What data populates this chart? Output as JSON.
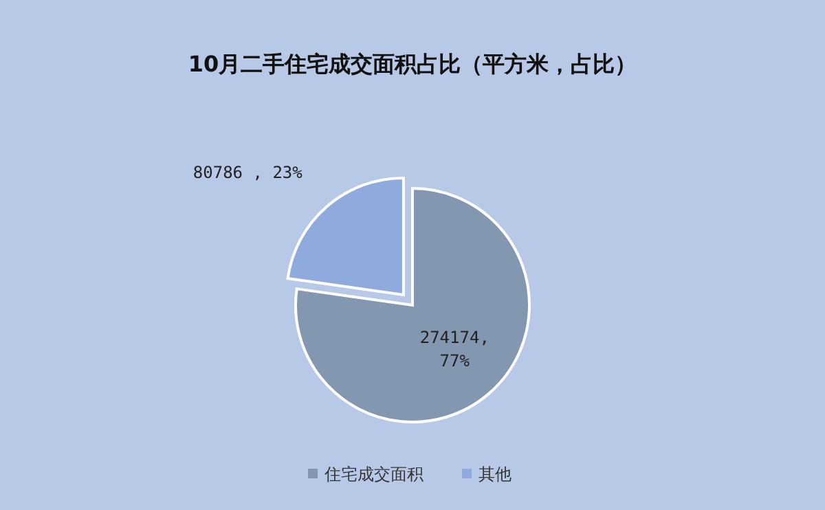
{
  "chart_data": {
    "type": "pie",
    "title": "10月二手住宅成交面积占比（平方米，占比）",
    "categories": [
      "住宅成交面积",
      "其他"
    ],
    "values": [
      274174,
      80786
    ],
    "colors": [
      "#8497b0",
      "#8faadc"
    ],
    "value_labels": [
      "274174,\n77%",
      "80786 , 23%"
    ],
    "legend": "bottom"
  }
}
